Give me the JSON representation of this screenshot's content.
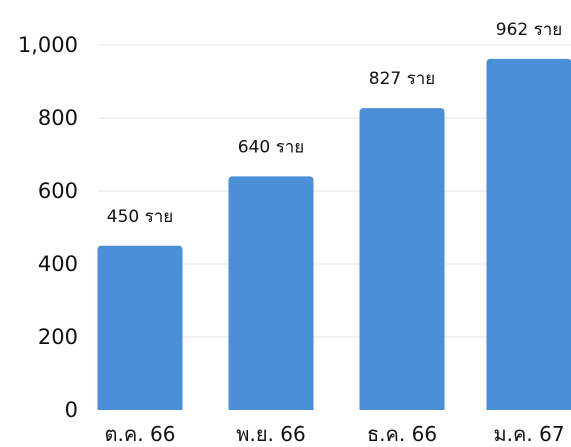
{
  "chart_data": {
    "type": "bar",
    "categories": [
      "ต.ค. 66",
      "พ.ย. 66",
      "ธ.ค. 66",
      "ม.ค. 67"
    ],
    "values": [
      450,
      640,
      827,
      962
    ],
    "data_labels": [
      "450 ราย",
      "640 ราย",
      "827 ราย",
      "962 ราย"
    ],
    "y_ticks": [
      0,
      200,
      400,
      600,
      800,
      1000
    ],
    "y_tick_labels": [
      "0",
      "200",
      "400",
      "600",
      "800",
      "1,000"
    ],
    "ylim": [
      0,
      1000
    ],
    "grid": true,
    "bar_color": "#4a8fd8"
  }
}
